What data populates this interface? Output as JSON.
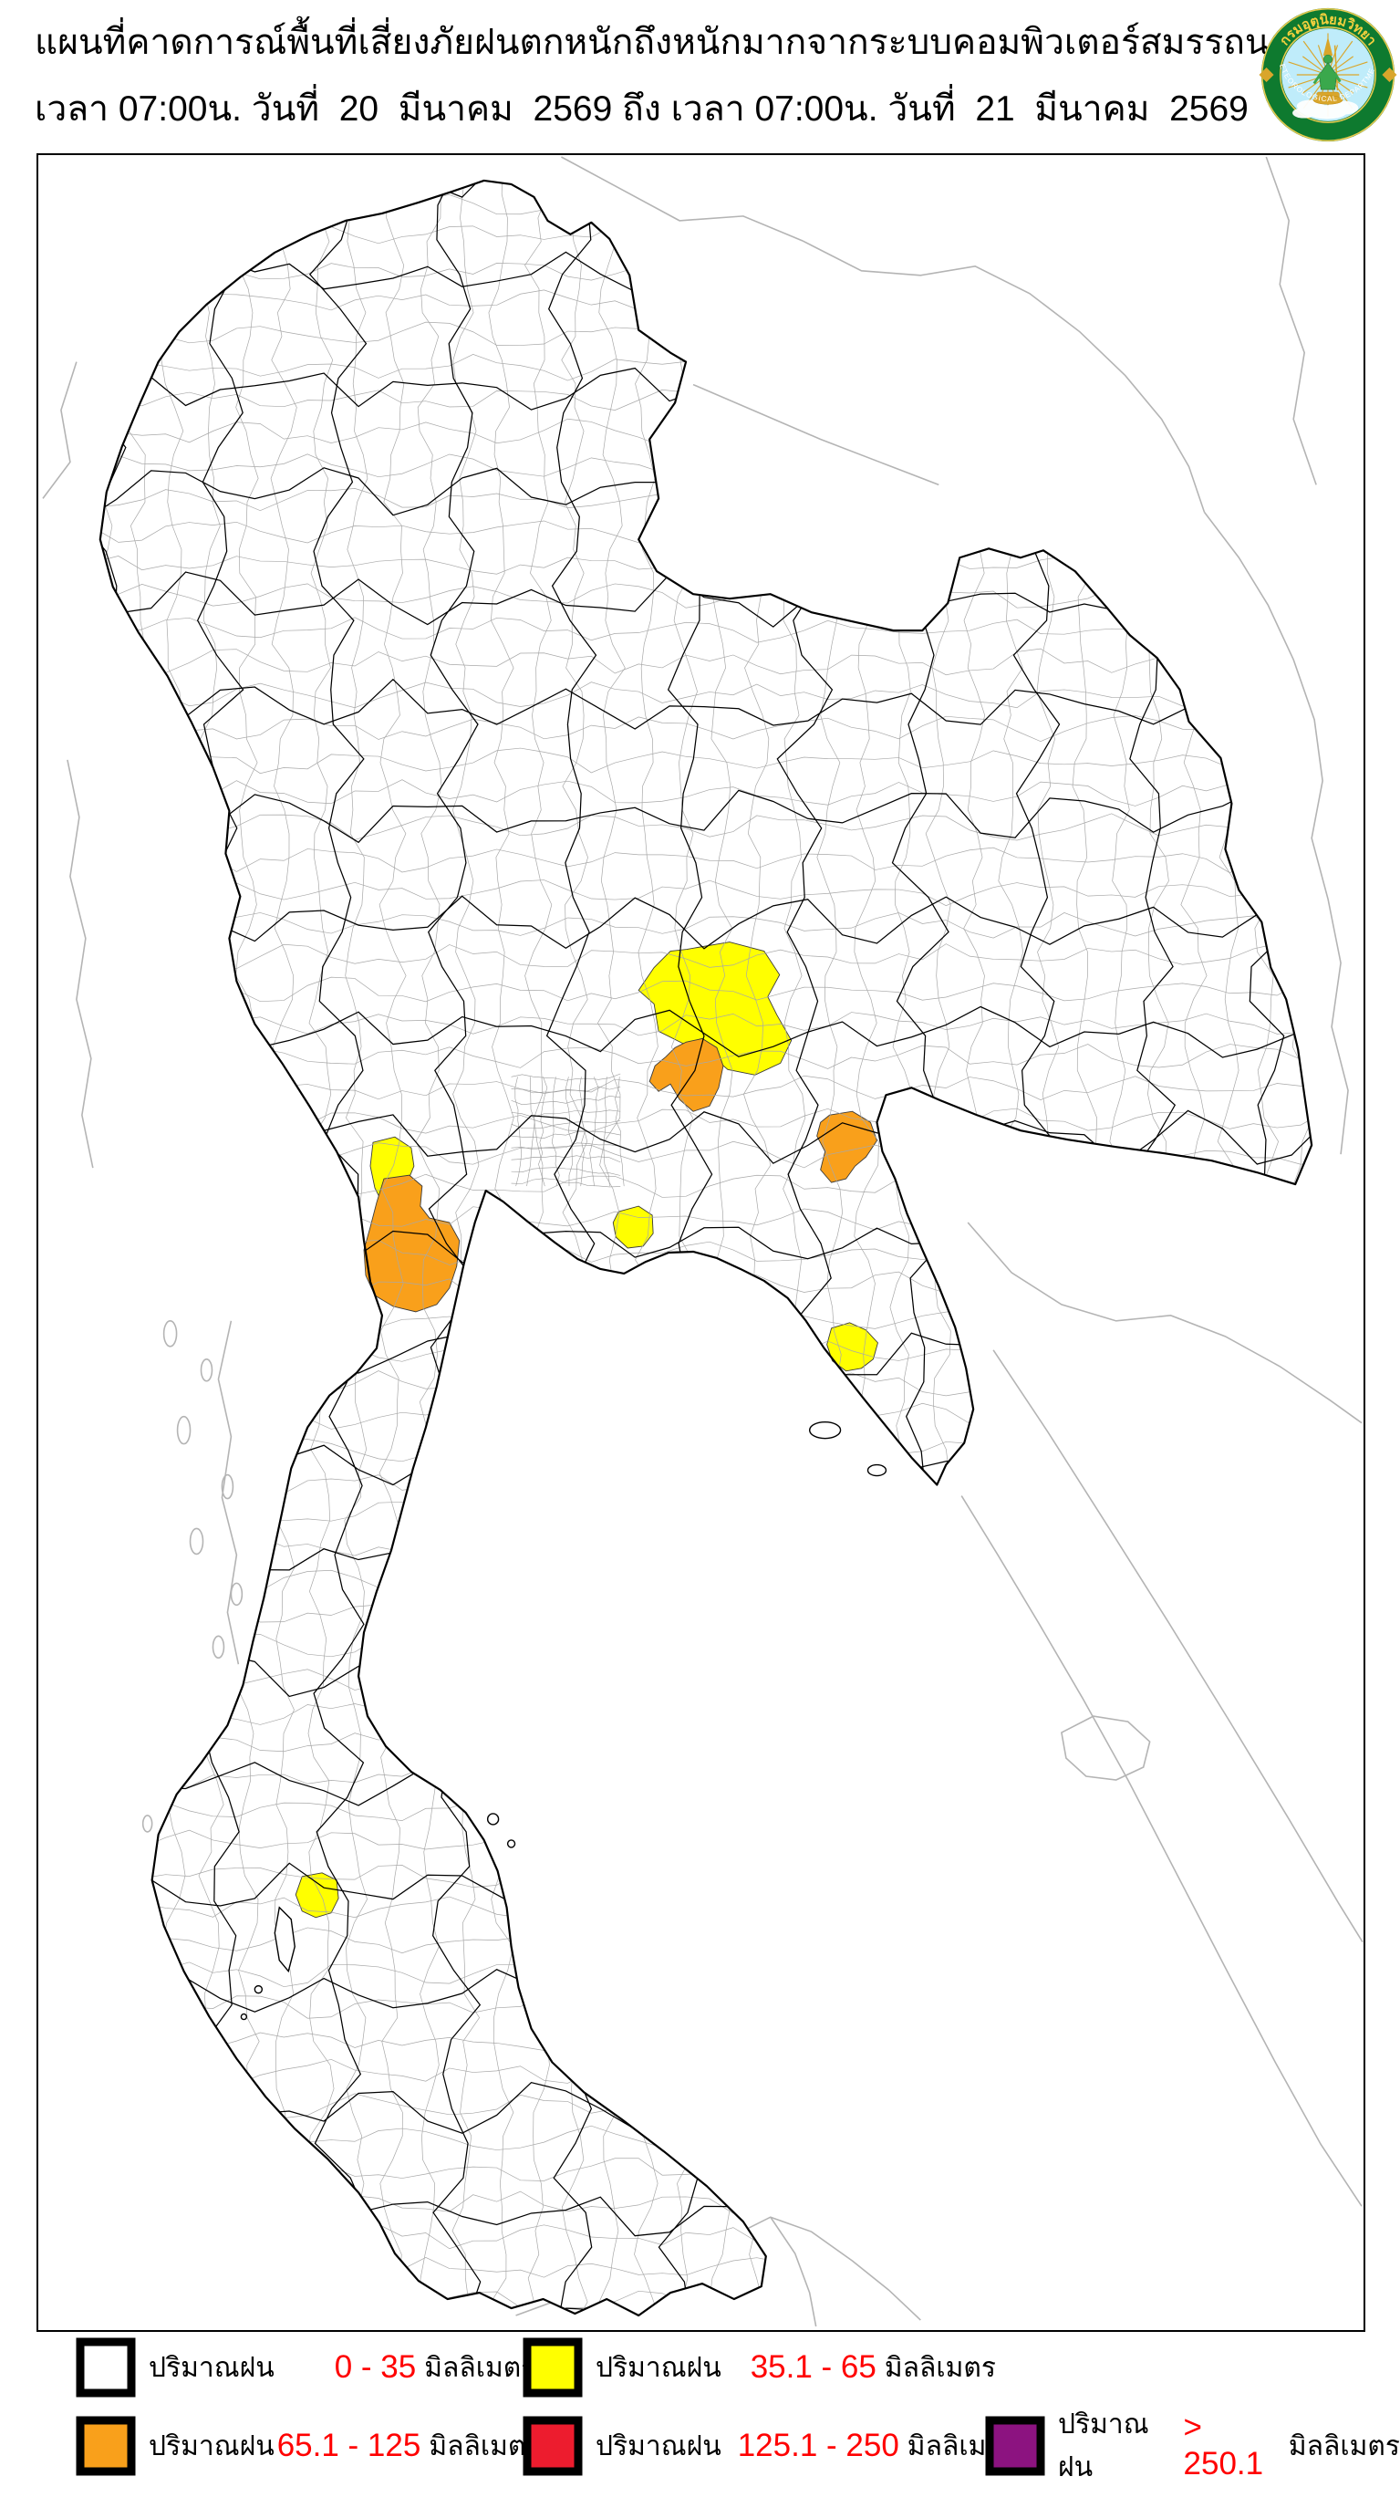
{
  "header": {
    "title_line1": "แผนที่คาดการณ์พื้นที่เสี่ยงภัยฝนตกหนักถึงหนักมากจากระบบคอมพิวเตอร์สมรรถนะสูง",
    "title_line2": "เวลา 07:00น. วันที่  20  มีนาคม  2569 ถึง เวลา 07:00น. วันที่  21  มีนาคม  2569",
    "logo": {
      "thai_name": "กรมอุตุนิยมวิทยา",
      "english_name": "METEOROLOGICAL DEPARTMENT",
      "ring_color": "#0e7a2f",
      "gold_color": "#d9a62b",
      "sky_color": "#bfecfa"
    }
  },
  "map": {
    "colors": {
      "none": "#ffffff",
      "light": "#ffff00",
      "moderate": "#f9a01b",
      "heavy": "#ed1c2e",
      "extreme": "#8c1380",
      "outline": "#000000",
      "district_line": "#a8a8a8",
      "foreign_line": "#b4b4b4"
    },
    "regions": [
      {
        "id": "central-plain-cluster",
        "fill": "yellow",
        "range": "35.1 - 65"
      },
      {
        "id": "central-plain-south",
        "fill": "orange",
        "range": "65.1 - 125"
      },
      {
        "id": "east-inland-border",
        "fill": "orange",
        "range": "65.1 - 125"
      },
      {
        "id": "west-border-upper",
        "fill": "yellow",
        "range": "35.1 - 65"
      },
      {
        "id": "west-border-main",
        "fill": "orange",
        "range": "65.1 - 125"
      },
      {
        "id": "upper-gulf-east-coast",
        "fill": "yellow",
        "range": "35.1 - 65"
      },
      {
        "id": "southeast-coast",
        "fill": "yellow",
        "range": "35.1 - 65"
      },
      {
        "id": "south-west-coast",
        "fill": "yellow",
        "range": "35.1 - 65"
      },
      {
        "id": "south-west-island",
        "fill": "yellow",
        "range": "35.1 - 65"
      }
    ]
  },
  "legend": {
    "range_text_color": "#ff0000",
    "items": [
      {
        "label": "ปริมาณฝน",
        "range": "0 - 35",
        "unit": "มิลลิเมตร",
        "color": "#ffffff"
      },
      {
        "label": "ปริมาณฝน",
        "range": "35.1 - 65",
        "unit": "มิลลิเมตร",
        "color": "#ffff00"
      },
      {
        "label": "ปริมาณฝน",
        "range": "65.1 - 125",
        "unit": "มิลลิเมตร",
        "color": "#f9a01b"
      },
      {
        "label": "ปริมาณฝน",
        "range": "125.1 - 250",
        "unit": "มิลลิเมตร",
        "color": "#ed1c2e"
      },
      {
        "label": "ปริมาณฝน",
        "range": "> 250.1",
        "unit": "มิลลิเมตร",
        "color": "#8c1380"
      }
    ]
  }
}
